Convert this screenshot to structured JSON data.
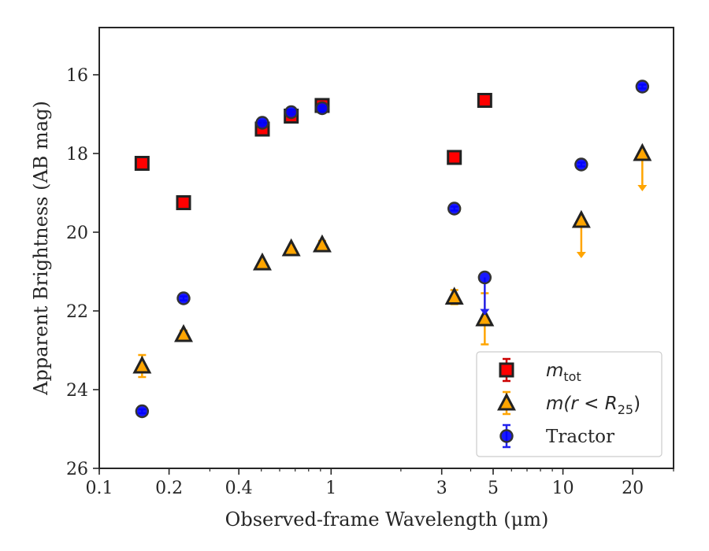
{
  "chart_data": {
    "type": "scatter",
    "xlabel": "Observed-frame Wavelength (μm)",
    "ylabel": "Apparent Brightness (AB mag)",
    "xscale": "log",
    "xlim": [
      0.1,
      30
    ],
    "ylim": [
      26,
      14.8
    ],
    "y_inverted": true,
    "x_ticks": [
      {
        "value": 0.1,
        "label": "0.1"
      },
      {
        "value": 0.2,
        "label": "0.2"
      },
      {
        "value": 0.4,
        "label": "0.4"
      },
      {
        "value": 1,
        "label": "1"
      },
      {
        "value": 3,
        "label": "3"
      },
      {
        "value": 5,
        "label": "5"
      },
      {
        "value": 10,
        "label": "10"
      },
      {
        "value": 20,
        "label": "20"
      }
    ],
    "y_ticks": [
      {
        "value": 16,
        "label": "16"
      },
      {
        "value": 18,
        "label": "18"
      },
      {
        "value": 20,
        "label": "20"
      },
      {
        "value": 22,
        "label": "22"
      },
      {
        "value": 24,
        "label": "24"
      },
      {
        "value": 26,
        "label": "26"
      }
    ],
    "grid": false,
    "legend_position": "lower-right",
    "series": [
      {
        "name": "m_tot",
        "legend_main": "m",
        "legend_sub": "tot",
        "marker": "square",
        "color": "#ff0000",
        "edge": "#222222",
        "points": [
          {
            "x": 0.153,
            "y": 18.25,
            "err": 0.05
          },
          {
            "x": 0.231,
            "y": 19.25,
            "err": 0.05
          },
          {
            "x": 0.505,
            "y": 17.38,
            "err": 0.05
          },
          {
            "x": 0.673,
            "y": 17.05,
            "err": 0.05
          },
          {
            "x": 0.915,
            "y": 16.78,
            "err": 0.05
          },
          {
            "x": 3.4,
            "y": 18.1,
            "err": 0.05
          },
          {
            "x": 4.6,
            "y": 16.65,
            "err": 0.05
          }
        ]
      },
      {
        "name": "m(r < R_25)",
        "legend_main": "m(r < R",
        "legend_sub": "25",
        "legend_tail": ")",
        "marker": "triangle",
        "color": "#ffa500",
        "edge": "#222222",
        "points": [
          {
            "x": 0.153,
            "y": 23.4,
            "err": 0.28
          },
          {
            "x": 0.231,
            "y": 22.6,
            "err": 0.1
          },
          {
            "x": 0.505,
            "y": 20.78,
            "err": 0.05
          },
          {
            "x": 0.673,
            "y": 20.42,
            "err": 0.05
          },
          {
            "x": 0.915,
            "y": 20.32,
            "err": 0.1
          },
          {
            "x": 3.4,
            "y": 21.65,
            "err": 0.18
          },
          {
            "x": 4.6,
            "y": 22.2,
            "err": 0.65
          },
          {
            "x": 12.0,
            "y": 19.7,
            "upper_limit": true
          },
          {
            "x": 22.0,
            "y": 18.0,
            "upper_limit": true
          }
        ]
      },
      {
        "name": "Tractor",
        "legend_main": "Tractor",
        "marker": "circle",
        "color": "#0000ff",
        "edge": "#333333",
        "points": [
          {
            "x": 0.153,
            "y": 24.55,
            "err": 0.05
          },
          {
            "x": 0.231,
            "y": 21.68,
            "err": 0.05
          },
          {
            "x": 0.505,
            "y": 17.22,
            "err": 0.05
          },
          {
            "x": 0.673,
            "y": 16.95,
            "err": 0.05
          },
          {
            "x": 0.915,
            "y": 16.85,
            "err": 0.05
          },
          {
            "x": 3.4,
            "y": 19.4,
            "err": 0.05
          },
          {
            "x": 4.6,
            "y": 21.15,
            "upper_limit": true
          },
          {
            "x": 12.0,
            "y": 18.28,
            "err": 0.05
          },
          {
            "x": 22.0,
            "y": 16.3,
            "err": 0.05
          }
        ]
      }
    ]
  }
}
